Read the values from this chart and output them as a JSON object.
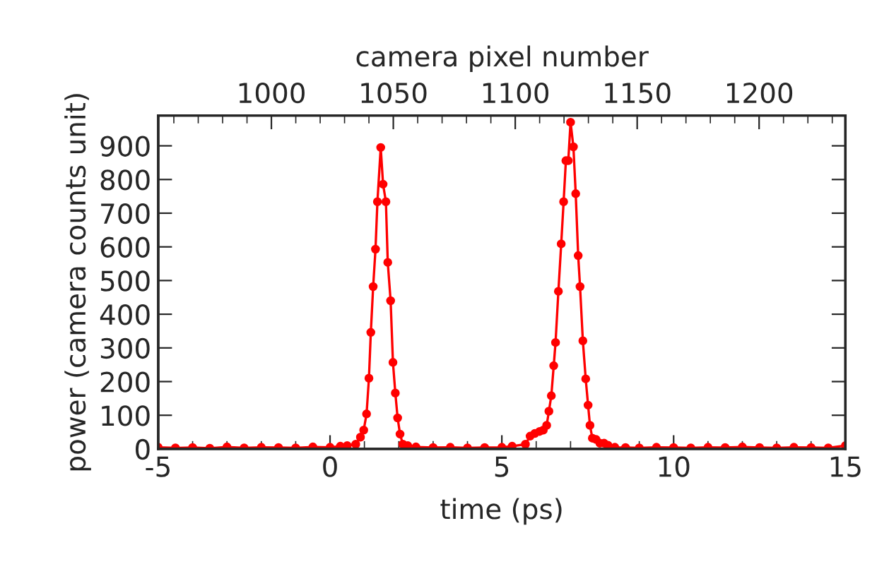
{
  "chart_data": {
    "type": "line",
    "xlabel": "time (ps)",
    "ylabel": "power (camera counts unit)",
    "x2label": "camera pixel number",
    "xlim": [
      -5,
      15
    ],
    "xticks": [
      {
        "value": -5,
        "label": "-5"
      },
      0,
      5,
      10,
      15
    ],
    "ylim": [
      0,
      990
    ],
    "yticks": [
      0,
      100,
      200,
      300,
      400,
      500,
      600,
      700,
      800,
      900
    ],
    "x2lim": [
      953.6,
      1235.4
    ],
    "x2ticks": [
      1000,
      1050,
      1100,
      1150,
      1200
    ],
    "marker": "circle",
    "line_style": "solid",
    "grid": false,
    "legend": false,
    "series": [
      {
        "color": "#ff0000",
        "x": [
          -5,
          -4.5,
          -4,
          -3.5,
          -3,
          -2.5,
          -2,
          -1.5,
          -1,
          -0.5,
          0,
          0.3,
          0.5,
          0.748,
          0.885,
          0.98,
          1.063,
          1.132,
          1.187,
          1.255,
          1.323,
          1.379,
          1.475,
          1.543,
          1.626,
          1.68,
          1.763,
          1.831,
          1.9,
          1.967,
          2.037,
          2.12,
          2.26,
          2.5,
          3,
          3.5,
          4,
          4.5,
          5,
          5.3,
          5.687,
          5.823,
          5.96,
          6.098,
          6.206,
          6.305,
          6.37,
          6.44,
          6.51,
          6.563,
          6.646,
          6.728,
          6.798,
          6.864,
          6.934,
          7.0,
          7.083,
          7.15,
          7.222,
          7.276,
          7.358,
          7.441,
          7.51,
          7.565,
          7.634,
          7.745,
          7.853,
          7.976,
          8.09,
          8.29,
          8.6,
          9,
          9.5,
          10,
          10.5,
          11,
          11.5,
          12,
          12.5,
          13,
          13.5,
          14,
          14.5,
          15
        ],
        "values": [
          5,
          3,
          4,
          2,
          6,
          3,
          5,
          4,
          3,
          6,
          5,
          8,
          10,
          14,
          35,
          56,
          104,
          210,
          346,
          482,
          593,
          734,
          895,
          786,
          734,
          554,
          440,
          257,
          166,
          92,
          44,
          14,
          10,
          6,
          4,
          5,
          3,
          4,
          5,
          8,
          14,
          38,
          46,
          52,
          56,
          70,
          112,
          158,
          247,
          316,
          468,
          609,
          734,
          856,
          856,
          970,
          897,
          758,
          574,
          482,
          321,
          208,
          130,
          70,
          32,
          28,
          17,
          17,
          11,
          5,
          4,
          3,
          5,
          4,
          3,
          5,
          4,
          6,
          4,
          3,
          5,
          4,
          3,
          10
        ]
      }
    ]
  }
}
